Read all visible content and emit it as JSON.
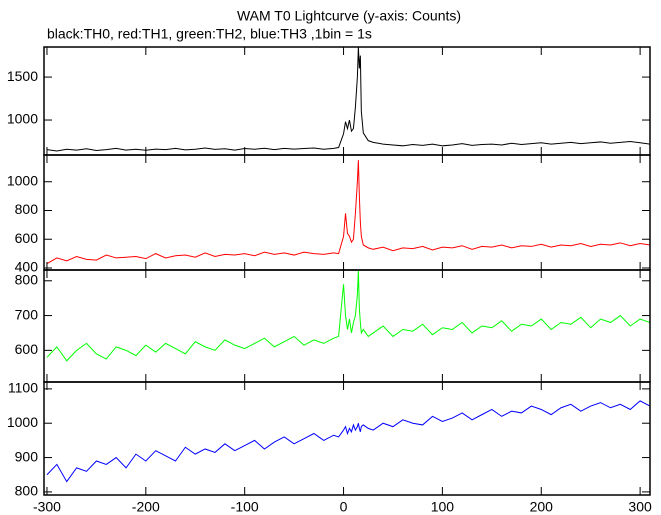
{
  "chart_data": [
    {
      "type": "line",
      "title": "WAM T0 Lightcurve (y-axis: Counts)",
      "subtitle": "black:TH0, red:TH1, green:TH2, blue:TH3 ,1bin = 1s",
      "x": [
        -300,
        -290,
        -280,
        -270,
        -260,
        -250,
        -240,
        -230,
        -220,
        -210,
        -200,
        -190,
        -180,
        -170,
        -160,
        -150,
        -140,
        -130,
        -120,
        -110,
        -100,
        -90,
        -80,
        -70,
        -60,
        -50,
        -40,
        -30,
        -20,
        -10,
        -5,
        0,
        2,
        4,
        6,
        8,
        10,
        12,
        14,
        15,
        16,
        17,
        18,
        20,
        25,
        30,
        40,
        50,
        60,
        70,
        80,
        90,
        100,
        110,
        120,
        130,
        140,
        150,
        160,
        170,
        180,
        190,
        200,
        210,
        220,
        230,
        240,
        250,
        260,
        270,
        280,
        290,
        300,
        310
      ],
      "values": [
        655,
        640,
        660,
        650,
        665,
        645,
        655,
        670,
        650,
        660,
        648,
        662,
        655,
        670,
        652,
        660,
        675,
        658,
        665,
        650,
        668,
        660,
        672,
        655,
        670,
        662,
        668,
        675,
        660,
        670,
        680,
        840,
        980,
        900,
        1000,
        870,
        900,
        1150,
        1500,
        1850,
        1600,
        1750,
        1100,
        850,
        760,
        740,
        720,
        710,
        700,
        715,
        705,
        720,
        700,
        710,
        725,
        705,
        715,
        720,
        710,
        730,
        715,
        725,
        735,
        720,
        730,
        740,
        725,
        735,
        745,
        730,
        740,
        750,
        735,
        720
      ],
      "color": "#000000",
      "xlim": [
        -303,
        310
      ],
      "ylim": [
        593,
        1850
      ],
      "yticks": [
        1000,
        1500
      ]
    },
    {
      "type": "line",
      "x": [
        -300,
        -290,
        -280,
        -270,
        -260,
        -250,
        -240,
        -230,
        -220,
        -210,
        -200,
        -190,
        -180,
        -170,
        -160,
        -150,
        -140,
        -130,
        -120,
        -110,
        -100,
        -90,
        -80,
        -70,
        -60,
        -50,
        -40,
        -30,
        -20,
        -10,
        -5,
        0,
        2,
        4,
        6,
        8,
        10,
        12,
        14,
        15,
        16,
        17,
        18,
        20,
        25,
        30,
        40,
        50,
        60,
        70,
        80,
        90,
        100,
        110,
        120,
        130,
        140,
        150,
        160,
        170,
        180,
        190,
        200,
        210,
        220,
        230,
        240,
        250,
        260,
        270,
        280,
        290,
        300,
        310
      ],
      "values": [
        430,
        470,
        450,
        480,
        460,
        455,
        490,
        470,
        475,
        480,
        465,
        500,
        470,
        485,
        490,
        475,
        505,
        480,
        495,
        490,
        500,
        485,
        510,
        495,
        505,
        490,
        510,
        500,
        495,
        505,
        500,
        620,
        780,
        640,
        620,
        580,
        600,
        780,
        1000,
        1150,
        900,
        720,
        620,
        560,
        540,
        530,
        545,
        520,
        540,
        535,
        550,
        525,
        545,
        540,
        555,
        530,
        550,
        545,
        560,
        540,
        555,
        550,
        565,
        545,
        560,
        555,
        570,
        550,
        565,
        560,
        575,
        555,
        570,
        560
      ],
      "color": "#ff0000",
      "xlim": [
        -303,
        310
      ],
      "ylim": [
        386,
        1186
      ],
      "yticks": [
        400,
        600,
        800,
        1000
      ]
    },
    {
      "type": "line",
      "x": [
        -300,
        -290,
        -280,
        -270,
        -260,
        -250,
        -240,
        -230,
        -220,
        -210,
        -200,
        -190,
        -180,
        -170,
        -160,
        -150,
        -140,
        -130,
        -120,
        -110,
        -100,
        -90,
        -80,
        -70,
        -60,
        -50,
        -40,
        -30,
        -20,
        -10,
        -5,
        0,
        2,
        4,
        6,
        8,
        10,
        12,
        14,
        15,
        16,
        17,
        18,
        20,
        25,
        30,
        40,
        50,
        60,
        70,
        80,
        90,
        100,
        110,
        120,
        130,
        140,
        150,
        160,
        170,
        180,
        190,
        200,
        210,
        220,
        230,
        240,
        250,
        260,
        270,
        280,
        290,
        300,
        310
      ],
      "values": [
        580,
        610,
        570,
        600,
        620,
        590,
        575,
        610,
        600,
        585,
        615,
        595,
        620,
        605,
        590,
        625,
        610,
        600,
        630,
        615,
        605,
        620,
        635,
        610,
        625,
        640,
        615,
        630,
        620,
        635,
        640,
        790,
        700,
        660,
        690,
        650,
        680,
        700,
        760,
        830,
        720,
        680,
        650,
        660,
        640,
        650,
        670,
        640,
        660,
        655,
        675,
        645,
        665,
        660,
        680,
        650,
        670,
        665,
        685,
        655,
        675,
        670,
        690,
        660,
        680,
        675,
        695,
        665,
        690,
        680,
        700,
        670,
        690,
        680
      ],
      "color": "#00ff00",
      "xlim": [
        -303,
        310
      ],
      "ylim": [
        509,
        831
      ],
      "yticks": [
        600,
        700,
        800
      ]
    },
    {
      "type": "line",
      "x": [
        -300,
        -290,
        -280,
        -270,
        -260,
        -250,
        -240,
        -230,
        -220,
        -210,
        -200,
        -190,
        -180,
        -170,
        -160,
        -150,
        -140,
        -130,
        -120,
        -110,
        -100,
        -90,
        -80,
        -70,
        -60,
        -50,
        -40,
        -30,
        -20,
        -10,
        -5,
        0,
        2,
        4,
        6,
        8,
        10,
        12,
        14,
        15,
        16,
        17,
        18,
        20,
        25,
        30,
        40,
        50,
        60,
        70,
        80,
        90,
        100,
        110,
        120,
        130,
        140,
        150,
        160,
        170,
        180,
        190,
        200,
        210,
        220,
        230,
        240,
        250,
        260,
        270,
        280,
        290,
        300,
        310
      ],
      "values": [
        850,
        880,
        830,
        870,
        860,
        890,
        880,
        900,
        870,
        910,
        890,
        920,
        905,
        890,
        930,
        910,
        925,
        915,
        940,
        920,
        935,
        950,
        925,
        945,
        960,
        940,
        955,
        970,
        950,
        965,
        960,
        980,
        990,
        970,
        985,
        975,
        995,
        980,
        990,
        1000,
        985,
        975,
        990,
        995,
        985,
        980,
        1000,
        990,
        1010,
        1000,
        995,
        1020,
        1005,
        1015,
        1030,
        1010,
        1025,
        1040,
        1020,
        1035,
        1030,
        1050,
        1040,
        1025,
        1045,
        1055,
        1035,
        1050,
        1060,
        1045,
        1055,
        1040,
        1065,
        1050
      ],
      "color": "#0000ff",
      "xlim": [
        -303,
        310
      ],
      "ylim": [
        791,
        1120
      ],
      "yticks": [
        800,
        900,
        1000,
        1100
      ],
      "xticks": [
        -300,
        -200,
        -100,
        0,
        100,
        200,
        300
      ]
    }
  ]
}
